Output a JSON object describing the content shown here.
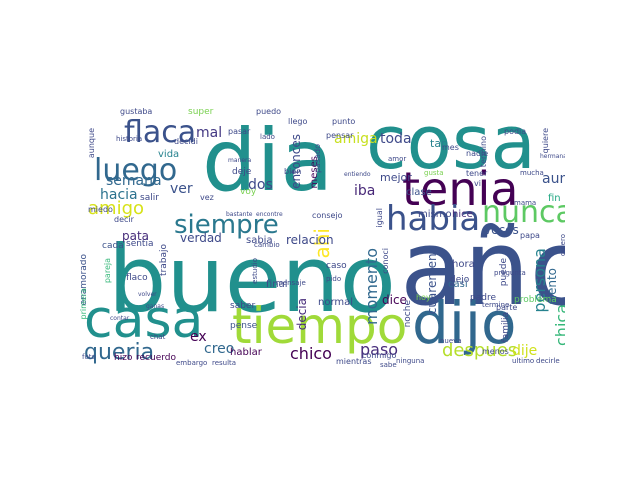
{
  "palette": {
    "dark_purple": "#440154",
    "indigo": "#3b528b",
    "teal": "#21908d",
    "green": "#5dc963",
    "yellow": "#fde725",
    "blue": "#31688e"
  },
  "words": [
    {
      "text": "año",
      "color": "#3b528b"
    },
    {
      "text": "bueno",
      "color": "#21908d"
    },
    {
      "text": "cosa",
      "color": "#21908d"
    },
    {
      "text": "dia",
      "color": "#21908d"
    },
    {
      "text": "tiempo",
      "color": "#a0da39"
    },
    {
      "text": "dijo",
      "color": "#31688e"
    },
    {
      "text": "casa",
      "color": "#21908d"
    },
    {
      "text": "tenia",
      "color": "#440154"
    },
    {
      "text": "habia",
      "color": "#3b528b"
    },
    {
      "text": "siempre",
      "color": "#2a788e"
    },
    {
      "text": "nunca",
      "color": "#5dc963"
    },
    {
      "text": "flaca",
      "color": "#3b528b"
    },
    {
      "text": "luego",
      "color": "#31688e"
    },
    {
      "text": "amigo",
      "color": "#d7e219"
    },
    {
      "text": "queria",
      "color": "#31688e"
    },
    {
      "text": "despues",
      "color": "#b5de2b"
    },
    {
      "text": "chico",
      "color": "#440154"
    },
    {
      "text": "ahi",
      "color": "#fde725"
    },
    {
      "text": "amiga",
      "color": "#c8e020"
    },
    {
      "text": "momento",
      "color": "#31688e"
    },
    {
      "text": "persona",
      "color": "#26828e"
    },
    {
      "text": "chica",
      "color": "#35b779"
    },
    {
      "text": "paso",
      "color": "#472d7b"
    },
    {
      "text": "iba",
      "color": "#482878"
    },
    {
      "text": "toda",
      "color": "#3e4989"
    },
    {
      "text": "mal",
      "color": "#443983"
    },
    {
      "text": "ver",
      "color": "#3b528b"
    },
    {
      "text": "aun",
      "color": "#3b528b"
    },
    {
      "text": "dije",
      "color": "#d0e11c"
    },
    {
      "text": "semana",
      "color": "#31688e"
    },
    {
      "text": "hacia",
      "color": "#2c728e"
    },
    {
      "text": "pata",
      "color": "#472d7b"
    },
    {
      "text": "verdad",
      "color": "#3e4989"
    },
    {
      "text": "creo",
      "color": "#31688e"
    },
    {
      "text": "hablar",
      "color": "#440154"
    },
    {
      "text": "ex",
      "color": "#440154"
    },
    {
      "text": "dos",
      "color": "#3e4989"
    },
    {
      "text": "vida",
      "color": "#26828e"
    },
    {
      "text": "entonces",
      "color": "#3e4989"
    },
    {
      "text": "meses",
      "color": "#46085c"
    },
    {
      "text": "relacion",
      "color": "#3e4989"
    },
    {
      "text": "decia",
      "color": "#472d7b"
    },
    {
      "text": "dice",
      "color": "#440154"
    },
    {
      "text": "veces",
      "color": "#3b528b"
    },
    {
      "text": "siento",
      "color": "#31688e"
    },
    {
      "text": "mejor",
      "color": "#3e4989"
    },
    {
      "text": "tan",
      "color": "#26828e"
    },
    {
      "text": "mismo",
      "color": "#3e4989"
    },
    {
      "text": "hice",
      "color": "#472d7b"
    },
    {
      "text": "cuarentena",
      "color": "#3b528b"
    },
    {
      "text": "casi",
      "color": "#31688e"
    },
    {
      "text": "hora",
      "color": "#3e4989"
    },
    {
      "text": "normal",
      "color": "#3e4989"
    },
    {
      "text": "clase",
      "color": "#3b528b"
    },
    {
      "text": "sabia",
      "color": "#3e4989"
    },
    {
      "text": "fin",
      "color": "#22a884"
    },
    {
      "text": "final",
      "color": "#3e4989"
    },
    {
      "text": "cada",
      "color": "#3b528b"
    },
    {
      "text": "flaco",
      "color": "#3e4989"
    },
    {
      "text": "pense",
      "color": "#3b528b"
    },
    {
      "text": "saber",
      "color": "#3e4989"
    },
    {
      "text": "hizo",
      "color": "#440154"
    },
    {
      "text": "recuerdo",
      "color": "#440154"
    },
    {
      "text": "conmigo",
      "color": "#3e4989"
    },
    {
      "text": "mientras",
      "color": "#3e4989"
    },
    {
      "text": "padre",
      "color": "#3e4989"
    },
    {
      "text": "familia",
      "color": "#3e4989"
    },
    {
      "text": "problema",
      "color": "#5dc963"
    },
    {
      "text": "mes",
      "color": "#3e4989"
    },
    {
      "text": "menos",
      "color": "#3e4989"
    },
    {
      "text": "trabajo",
      "color": "#3e4989"
    },
    {
      "text": "dejo",
      "color": "#3e4989"
    },
    {
      "text": "puede",
      "color": "#3e4989"
    },
    {
      "text": "caso",
      "color": "#3e4989"
    },
    {
      "text": "noche",
      "color": "#3e4989"
    },
    {
      "text": "sentia",
      "color": "#3e4989"
    },
    {
      "text": "enamorado",
      "color": "#3b528b"
    },
    {
      "text": "primera",
      "color": "#35b779"
    },
    {
      "text": "pareja",
      "color": "#35b779"
    },
    {
      "text": "miedo",
      "color": "#3e4989"
    },
    {
      "text": "salir",
      "color": "#3e4989"
    },
    {
      "text": "decir",
      "color": "#3e4989"
    },
    {
      "text": "aunque",
      "color": "#3e4989"
    },
    {
      "text": "gustaba",
      "color": "#3e4989"
    },
    {
      "text": "super",
      "color": "#7ad151"
    },
    {
      "text": "puedo",
      "color": "#3e4989"
    },
    {
      "text": "llego",
      "color": "#3e4989"
    },
    {
      "text": "punto",
      "color": "#3e4989"
    },
    {
      "text": "podia",
      "color": "#3e4989"
    },
    {
      "text": "quiere",
      "color": "#3e4989"
    },
    {
      "text": "nadie",
      "color": "#3e4989"
    },
    {
      "text": "termino",
      "color": "#3e4989"
    },
    {
      "text": "conoci",
      "color": "#3e4989"
    },
    {
      "text": "deje",
      "color": "#3e4989"
    },
    {
      "text": "voy",
      "color": "#7ad151"
    },
    {
      "text": "tener",
      "color": "#3e4989"
    },
    {
      "text": "papa",
      "color": "#3e4989"
    },
    {
      "text": "hoy",
      "color": "#7ad151"
    },
    {
      "text": "parte",
      "color": "#3e4989"
    },
    {
      "text": "consejo",
      "color": "#3e4989"
    },
    {
      "text": "igual",
      "color": "#3e4989"
    },
    {
      "text": "pasar",
      "color": "#3e4989"
    },
    {
      "text": "pasado",
      "color": "#3e4989"
    },
    {
      "text": "pensar",
      "color": "#3e4989"
    },
    {
      "text": "decidi",
      "color": "#3e4989"
    },
    {
      "text": "vez",
      "color": "#3e4989"
    },
    {
      "text": "historia",
      "color": "#3e4989"
    },
    {
      "text": "bien",
      "color": "#3e4989"
    },
    {
      "text": "gusta",
      "color": "#7ad151"
    },
    {
      "text": "vi",
      "color": "#3e4989"
    },
    {
      "text": "mucha",
      "color": "#3e4989"
    },
    {
      "text": "estudio",
      "color": "#3e4989"
    },
    {
      "text": "foto",
      "color": "#3e4989"
    },
    {
      "text": "lado",
      "color": "#3e4989"
    },
    {
      "text": "amor",
      "color": "#3e4989"
    },
    {
      "text": "mama",
      "color": "#3e4989"
    },
    {
      "text": "pido",
      "color": "#3e4989"
    },
    {
      "text": "nueva",
      "color": "#3e4989"
    },
    {
      "text": "decirle",
      "color": "#3e4989"
    },
    {
      "text": "ultimo",
      "color": "#3e4989"
    },
    {
      "text": "embargo",
      "color": "#3e4989"
    },
    {
      "text": "resulta",
      "color": "#3e4989"
    },
    {
      "text": "sabe",
      "color": "#3e4989"
    },
    {
      "text": "ninguna",
      "color": "#3e4989"
    },
    {
      "text": "pregunta",
      "color": "#3e4989"
    },
    {
      "text": "quiero",
      "color": "#3e4989"
    },
    {
      "text": "termine",
      "color": "#3e4989"
    },
    {
      "text": "cambio",
      "color": "#3e4989"
    },
    {
      "text": "hermana",
      "color": "#3e4989"
    },
    {
      "text": "mensaje",
      "color": "#3e4989"
    },
    {
      "text": "volver",
      "color": "#3e4989"
    },
    {
      "text": "manera",
      "color": "#3e4989"
    },
    {
      "text": "ganas",
      "color": "#3e4989"
    },
    {
      "text": "chat",
      "color": "#3e4989"
    },
    {
      "text": "entiendo",
      "color": "#3e4989"
    },
    {
      "text": "contar",
      "color": "#3e4989"
    },
    {
      "text": "bastante",
      "color": "#3e4989"
    },
    {
      "text": "encontre",
      "color": "#3e4989"
    }
  ]
}
